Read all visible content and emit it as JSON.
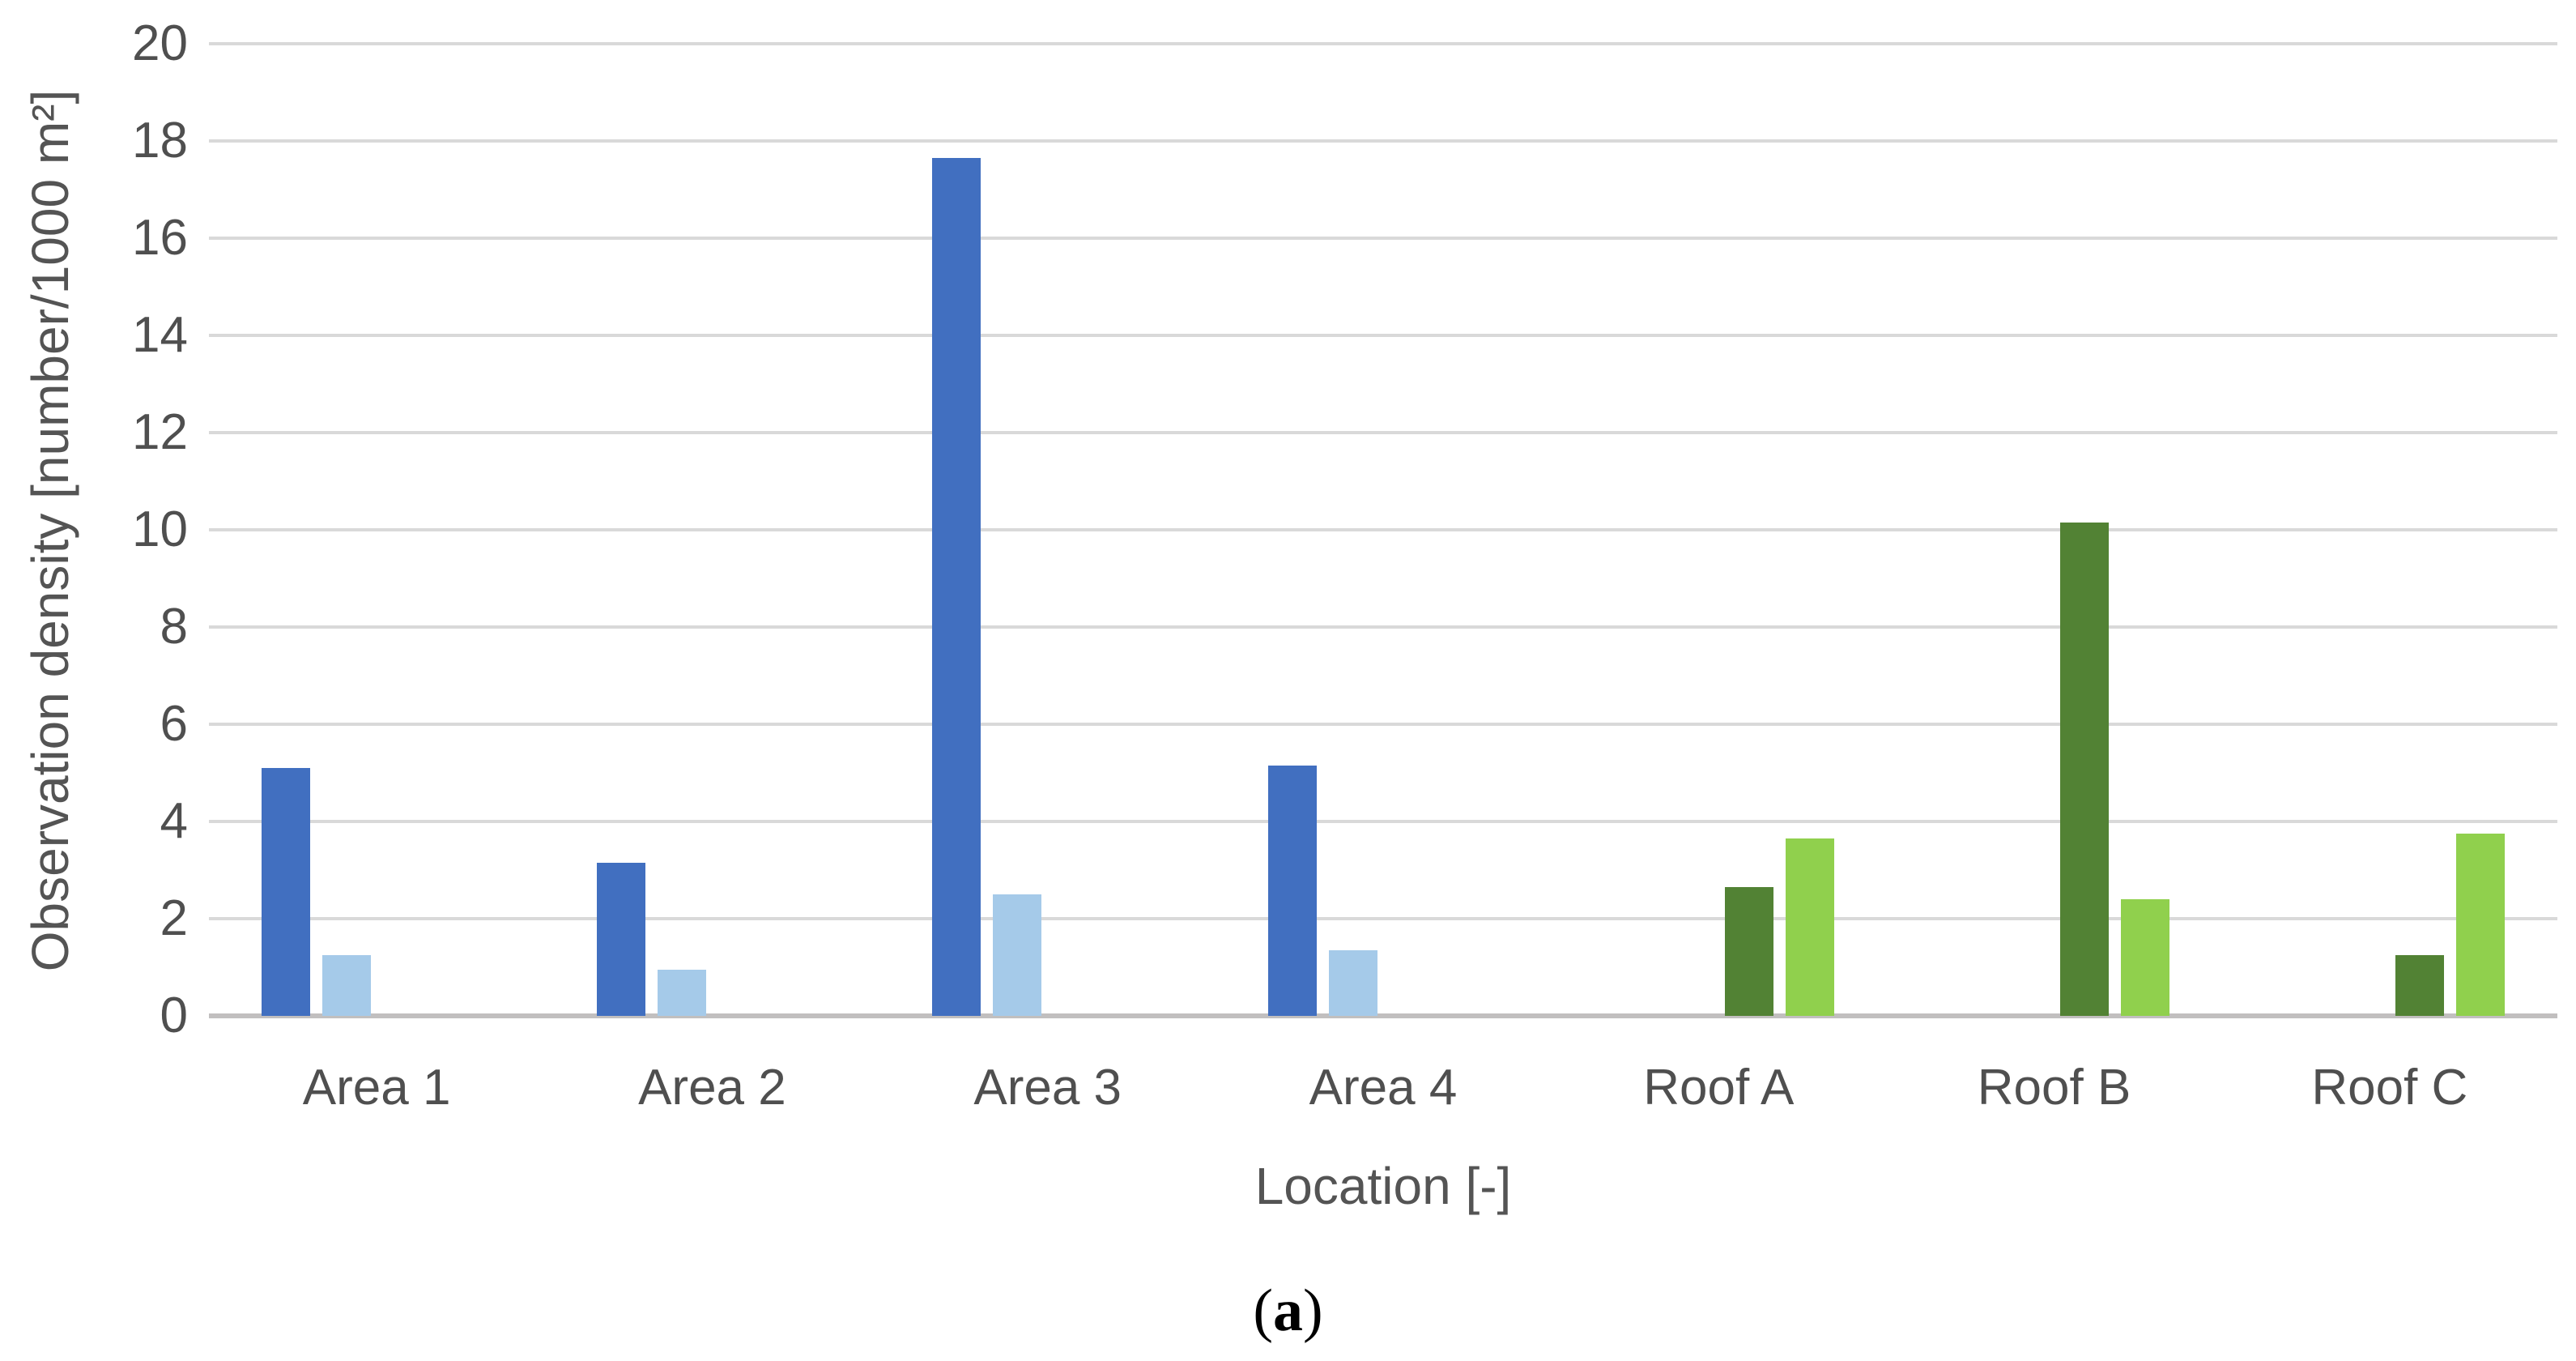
{
  "chart_data": {
    "type": "bar",
    "title": "",
    "xlabel": "Location [-]",
    "ylabel": "Observation density [number/1000 m²]",
    "categories": [
      "Area 1",
      "Area 2",
      "Area 3",
      "Area 4",
      "Roof A",
      "Roof B",
      "Roof C"
    ],
    "series": [
      {
        "name": "dark-blue",
        "color": "#416FC0",
        "values": [
          5.1,
          3.15,
          17.65,
          5.15,
          null,
          null,
          null
        ]
      },
      {
        "name": "light-blue",
        "color": "#A5CAE9",
        "values": [
          1.25,
          0.95,
          2.5,
          1.35,
          null,
          null,
          null
        ]
      },
      {
        "name": "dark-green",
        "color": "#528234",
        "values": [
          null,
          null,
          null,
          null,
          2.65,
          10.15,
          1.25
        ]
      },
      {
        "name": "light-green",
        "color": "#90D04D",
        "values": [
          null,
          null,
          null,
          null,
          3.65,
          2.4,
          3.75
        ]
      }
    ],
    "ylim": [
      0,
      20
    ],
    "ytick_step": 2,
    "ytick_labels": [
      "0",
      "2",
      "4",
      "6",
      "8",
      "10",
      "12",
      "14",
      "16",
      "18",
      "20"
    ],
    "grid": "horizontal",
    "legend": "none"
  },
  "caption": {
    "open": "(",
    "letter": "a",
    "close": ")"
  },
  "colors": {
    "gridline": "#D9D9D9",
    "axis_line": "#C1BFBF",
    "tick_text": "#4F4F4F",
    "title_text": "#545454",
    "caption_text": "#000000"
  }
}
